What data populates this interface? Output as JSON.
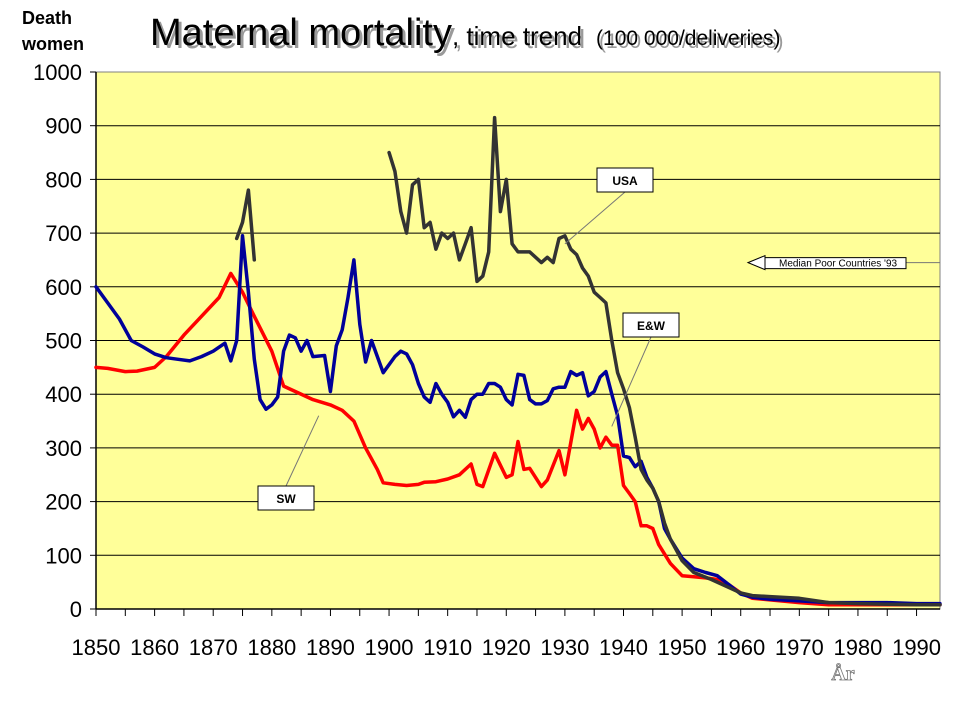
{
  "chart_data": {
    "type": "line",
    "title": "Maternal mortality",
    "title_suffix": ", time trend",
    "title_units": "(100 000/deliveries)",
    "ylabel_line1": "Death",
    "ylabel_line2": "women",
    "xlabel": "År",
    "xlim": [
      1850,
      1994
    ],
    "ylim": [
      0,
      1000
    ],
    "x_ticks": [
      1850,
      1860,
      1870,
      1880,
      1890,
      1900,
      1910,
      1920,
      1930,
      1940,
      1950,
      1960,
      1970,
      1980,
      1990
    ],
    "y_ticks": [
      0,
      100,
      200,
      300,
      400,
      500,
      600,
      700,
      800,
      900,
      1000
    ],
    "grid": "horizontal",
    "plot_background": "#ffff99",
    "series": [
      {
        "name": "SW",
        "color": "#ff0000",
        "points": [
          [
            1850,
            450
          ],
          [
            1852,
            448
          ],
          [
            1855,
            442
          ],
          [
            1857,
            443
          ],
          [
            1860,
            450
          ],
          [
            1862,
            470
          ],
          [
            1865,
            510
          ],
          [
            1868,
            545
          ],
          [
            1871,
            580
          ],
          [
            1873,
            625
          ],
          [
            1875,
            590
          ],
          [
            1877,
            545
          ],
          [
            1880,
            480
          ],
          [
            1882,
            415
          ],
          [
            1884,
            405
          ],
          [
            1887,
            390
          ],
          [
            1890,
            380
          ],
          [
            1892,
            370
          ],
          [
            1894,
            350
          ],
          [
            1896,
            300
          ],
          [
            1898,
            260
          ],
          [
            1899,
            235
          ],
          [
            1901,
            232
          ],
          [
            1903,
            230
          ],
          [
            1905,
            232
          ],
          [
            1906,
            236
          ],
          [
            1908,
            237
          ],
          [
            1910,
            242
          ],
          [
            1912,
            250
          ],
          [
            1914,
            270
          ],
          [
            1915,
            232
          ],
          [
            1916,
            228
          ],
          [
            1918,
            290
          ],
          [
            1920,
            245
          ],
          [
            1921,
            250
          ],
          [
            1922,
            312
          ],
          [
            1923,
            260
          ],
          [
            1924,
            262
          ],
          [
            1926,
            228
          ],
          [
            1927,
            240
          ],
          [
            1929,
            295
          ],
          [
            1930,
            250
          ],
          [
            1931,
            310
          ],
          [
            1932,
            370
          ],
          [
            1933,
            335
          ],
          [
            1934,
            355
          ],
          [
            1935,
            335
          ],
          [
            1936,
            300
          ],
          [
            1937,
            320
          ],
          [
            1938,
            305
          ],
          [
            1939,
            305
          ],
          [
            1940,
            230
          ],
          [
            1941,
            215
          ],
          [
            1942,
            200
          ],
          [
            1943,
            155
          ],
          [
            1944,
            155
          ],
          [
            1945,
            150
          ],
          [
            1946,
            120
          ],
          [
            1948,
            85
          ],
          [
            1950,
            62
          ],
          [
            1952,
            60
          ],
          [
            1954,
            58
          ],
          [
            1956,
            55
          ],
          [
            1958,
            45
          ],
          [
            1960,
            30
          ],
          [
            1962,
            20
          ],
          [
            1965,
            17
          ],
          [
            1970,
            12
          ],
          [
            1975,
            8
          ],
          [
            1980,
            8
          ],
          [
            1985,
            8
          ],
          [
            1990,
            8
          ],
          [
            1994,
            8
          ]
        ]
      },
      {
        "name": "E&W",
        "color": "#000099",
        "points": [
          [
            1850,
            600
          ],
          [
            1852,
            570
          ],
          [
            1854,
            540
          ],
          [
            1856,
            500
          ],
          [
            1858,
            488
          ],
          [
            1860,
            475
          ],
          [
            1862,
            468
          ],
          [
            1864,
            465
          ],
          [
            1866,
            462
          ],
          [
            1868,
            470
          ],
          [
            1870,
            480
          ],
          [
            1872,
            495
          ],
          [
            1873,
            462
          ],
          [
            1874,
            500
          ],
          [
            1875,
            695
          ],
          [
            1876,
            590
          ],
          [
            1877,
            465
          ],
          [
            1878,
            390
          ],
          [
            1879,
            372
          ],
          [
            1880,
            380
          ],
          [
            1881,
            395
          ],
          [
            1882,
            480
          ],
          [
            1883,
            510
          ],
          [
            1884,
            505
          ],
          [
            1885,
            480
          ],
          [
            1886,
            500
          ],
          [
            1887,
            470
          ],
          [
            1889,
            472
          ],
          [
            1890,
            405
          ],
          [
            1891,
            490
          ],
          [
            1892,
            520
          ],
          [
            1893,
            580
          ],
          [
            1894,
            650
          ],
          [
            1895,
            530
          ],
          [
            1896,
            460
          ],
          [
            1897,
            500
          ],
          [
            1899,
            440
          ],
          [
            1901,
            470
          ],
          [
            1902,
            480
          ],
          [
            1903,
            475
          ],
          [
            1904,
            455
          ],
          [
            1905,
            420
          ],
          [
            1906,
            395
          ],
          [
            1907,
            385
          ],
          [
            1908,
            420
          ],
          [
            1909,
            400
          ],
          [
            1910,
            385
          ],
          [
            1911,
            358
          ],
          [
            1912,
            370
          ],
          [
            1913,
            357
          ],
          [
            1914,
            390
          ],
          [
            1915,
            400
          ],
          [
            1916,
            400
          ],
          [
            1917,
            420
          ],
          [
            1918,
            420
          ],
          [
            1919,
            413
          ],
          [
            1920,
            390
          ],
          [
            1921,
            380
          ],
          [
            1922,
            437
          ],
          [
            1923,
            435
          ],
          [
            1924,
            390
          ],
          [
            1925,
            382
          ],
          [
            1926,
            382
          ],
          [
            1927,
            388
          ],
          [
            1928,
            410
          ],
          [
            1929,
            413
          ],
          [
            1930,
            413
          ],
          [
            1931,
            442
          ],
          [
            1932,
            435
          ],
          [
            1933,
            440
          ],
          [
            1934,
            397
          ],
          [
            1935,
            405
          ],
          [
            1936,
            432
          ],
          [
            1937,
            442
          ],
          [
            1938,
            400
          ],
          [
            1939,
            360
          ],
          [
            1940,
            285
          ],
          [
            1941,
            282
          ],
          [
            1942,
            265
          ],
          [
            1943,
            275
          ],
          [
            1944,
            245
          ],
          [
            1945,
            225
          ],
          [
            1946,
            200
          ],
          [
            1947,
            150
          ],
          [
            1948,
            130
          ],
          [
            1950,
            95
          ],
          [
            1952,
            75
          ],
          [
            1954,
            68
          ],
          [
            1956,
            62
          ],
          [
            1958,
            45
          ],
          [
            1960,
            28
          ],
          [
            1962,
            22
          ],
          [
            1965,
            18
          ],
          [
            1970,
            15
          ],
          [
            1975,
            12
          ],
          [
            1980,
            12
          ],
          [
            1985,
            12
          ],
          [
            1990,
            10
          ],
          [
            1994,
            10
          ]
        ]
      },
      {
        "name": "USA",
        "color": "#333333",
        "segments": [
          [
            [
              1874,
              690
            ],
            [
              1875,
              720
            ],
            [
              1876,
              780
            ],
            [
              1877,
              650
            ]
          ],
          [
            [
              1900,
              850
            ],
            [
              1901,
              815
            ],
            [
              1902,
              740
            ],
            [
              1903,
              700
            ],
            [
              1904,
              790
            ],
            [
              1905,
              800
            ],
            [
              1906,
              710
            ],
            [
              1907,
              720
            ],
            [
              1908,
              670
            ],
            [
              1909,
              700
            ],
            [
              1910,
              690
            ],
            [
              1911,
              700
            ],
            [
              1912,
              650
            ],
            [
              1913,
              680
            ],
            [
              1914,
              710
            ],
            [
              1915,
              610
            ],
            [
              1916,
              620
            ],
            [
              1917,
              665
            ],
            [
              1918,
              915
            ],
            [
              1919,
              740
            ],
            [
              1920,
              800
            ],
            [
              1921,
              680
            ],
            [
              1922,
              665
            ],
            [
              1924,
              665
            ],
            [
              1926,
              645
            ],
            [
              1927,
              655
            ],
            [
              1928,
              645
            ],
            [
              1929,
              690
            ],
            [
              1930,
              695
            ],
            [
              1931,
              670
            ],
            [
              1932,
              660
            ],
            [
              1933,
              635
            ],
            [
              1934,
              620
            ],
            [
              1935,
              590
            ],
            [
              1936,
              580
            ],
            [
              1937,
              570
            ],
            [
              1938,
              500
            ],
            [
              1939,
              440
            ],
            [
              1940,
              410
            ],
            [
              1941,
              375
            ],
            [
              1942,
              320
            ],
            [
              1943,
              260
            ],
            [
              1944,
              240
            ],
            [
              1945,
              225
            ],
            [
              1946,
              200
            ],
            [
              1947,
              160
            ],
            [
              1948,
              130
            ],
            [
              1950,
              90
            ],
            [
              1952,
              68
            ],
            [
              1955,
              55
            ],
            [
              1958,
              40
            ],
            [
              1960,
              30
            ],
            [
              1962,
              25
            ],
            [
              1965,
              23
            ],
            [
              1970,
              20
            ],
            [
              1975,
              12
            ],
            [
              1980,
              10
            ],
            [
              1985,
              9
            ],
            [
              1990,
              8
            ],
            [
              1994,
              8
            ]
          ]
        ]
      }
    ],
    "annotations": [
      {
        "text": "USA",
        "points_to": [
          1930,
          680
        ]
      },
      {
        "text": "E&W",
        "points_to": [
          1938,
          340
        ]
      },
      {
        "text": "SW",
        "points_to": [
          1888,
          360
        ]
      },
      {
        "text": "Median Poor Countries '93",
        "value": 645
      }
    ]
  }
}
